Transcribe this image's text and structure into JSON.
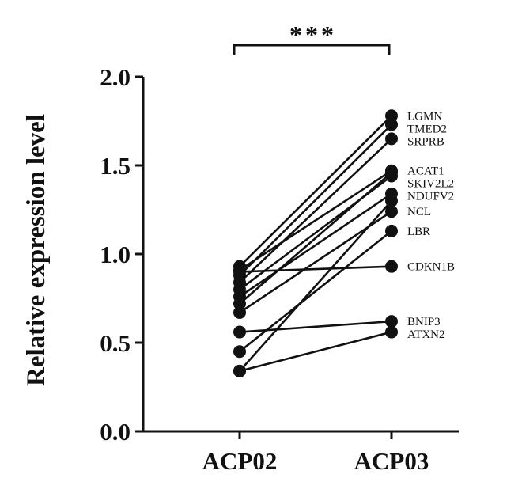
{
  "chart_data": {
    "type": "paired-line",
    "title": "",
    "xlabel": "",
    "ylabel": "Relative expression level",
    "categories": [
      "ACP02",
      "ACP03"
    ],
    "ylim": [
      0,
      2.0
    ],
    "yticks": [
      "0.0",
      "0.5",
      "1.0",
      "1.5",
      "2.0"
    ],
    "grid": false,
    "legend": "none",
    "significance": "***",
    "series": [
      {
        "name": "LGMN",
        "values": [
          0.93,
          1.78
        ]
      },
      {
        "name": "TMED2",
        "values": [
          0.88,
          1.73
        ]
      },
      {
        "name": "SRPRB",
        "values": [
          0.84,
          1.65
        ]
      },
      {
        "name": "ACAT1",
        "values": [
          0.91,
          1.47
        ]
      },
      {
        "name": "SKIV2L2",
        "values": [
          0.8,
          1.44
        ]
      },
      {
        "name": "NDUFV2",
        "values": [
          0.76,
          1.34
        ]
      },
      {
        "name": "NCL",
        "values": [
          0.67,
          1.24
        ]
      },
      {
        "name": "LBR",
        "values": [
          0.45,
          1.13
        ]
      },
      {
        "name": "CDKN1B",
        "values": [
          0.9,
          0.93
        ]
      },
      {
        "name": "BNIP3",
        "values": [
          0.56,
          0.62
        ]
      },
      {
        "name": "ATXN2",
        "values": [
          0.34,
          0.56
        ]
      },
      {
        "name": "",
        "values": [
          0.72,
          1.46
        ]
      },
      {
        "name": "",
        "values": [
          0.34,
          1.3
        ]
      }
    ],
    "colors": {
      "ink": "#111111",
      "background": "#ffffff"
    }
  }
}
